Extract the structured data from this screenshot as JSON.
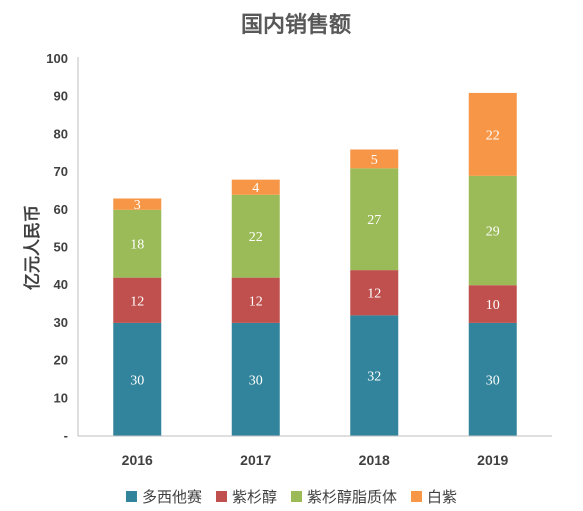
{
  "chart_data": {
    "type": "bar",
    "stacked": true,
    "title": "国内销售额",
    "ylabel": "亿元人民币",
    "xlabel": "",
    "ylim": [
      0,
      100
    ],
    "yticks": [
      0,
      10,
      20,
      30,
      40,
      50,
      60,
      70,
      80,
      90,
      100
    ],
    "ytick_labels": [
      "-",
      "10",
      "20",
      "30",
      "40",
      "50",
      "60",
      "70",
      "80",
      "90",
      "100"
    ],
    "categories": [
      "2016",
      "2017",
      "2018",
      "2019"
    ],
    "series": [
      {
        "name": "多西他赛",
        "values": [
          30,
          30,
          32,
          30
        ],
        "color": "#31849B"
      },
      {
        "name": "紫杉醇",
        "values": [
          12,
          12,
          12,
          10
        ],
        "color": "#C0504D"
      },
      {
        "name": "紫杉醇脂质体",
        "values": [
          18,
          22,
          27,
          29
        ],
        "color": "#9BBB59"
      },
      {
        "name": "白紫",
        "values": [
          3,
          4,
          5,
          22
        ],
        "color": "#F79646"
      }
    ],
    "grid": false,
    "legend_position": "bottom"
  }
}
